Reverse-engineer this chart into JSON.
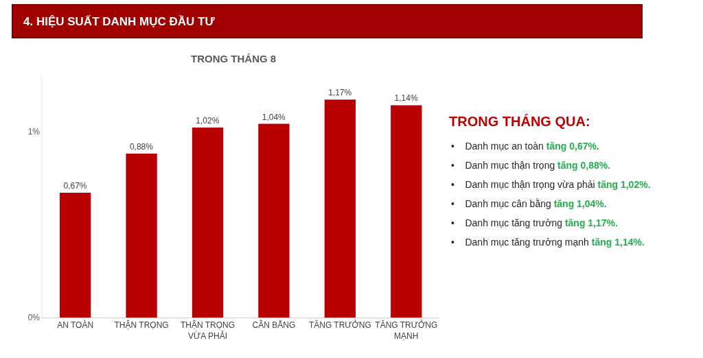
{
  "chart_data": {
    "type": "bar",
    "title": "4. HIỆU SUẤT DANH MỤC ĐẦU TƯ",
    "subtitle": "TRONG THÁNG 8",
    "categories": [
      "AN TOÀN",
      "THẬN TRỌNG",
      "THẬN TRỌNG VỪA PHẢI",
      "CÂN BẰNG",
      "TĂNG TRƯỞNG",
      "TĂNG TRƯỞNG MẠNH"
    ],
    "values": [
      0.67,
      0.88,
      1.02,
      1.04,
      1.17,
      1.14
    ],
    "value_labels": [
      "0,67%",
      "0,88%",
      "1,02%",
      "1,04%",
      "1,17%",
      "1,14%"
    ],
    "color": "#b80000",
    "ylim": [
      0,
      1.3
    ],
    "yticks": [
      {
        "value": 0,
        "label": "0%"
      },
      {
        "value": 1,
        "label": "1%"
      }
    ],
    "grid": false,
    "annotations": [
      "TRONG THÁNG QUA:",
      "• Danh mục an toàn tăng 0,67%.",
      "• Danh mục thận trọng tăng 0,88%.",
      "• Danh mục thận trọng vừa phải tăng 1,02%.",
      "• Danh mục cân bằng tăng 1,04%.",
      "• Danh mục tăng trưởng tăng 1,17%.",
      "• Danh mục tăng trưởng mạnh tăng 1,14%."
    ]
  }
}
